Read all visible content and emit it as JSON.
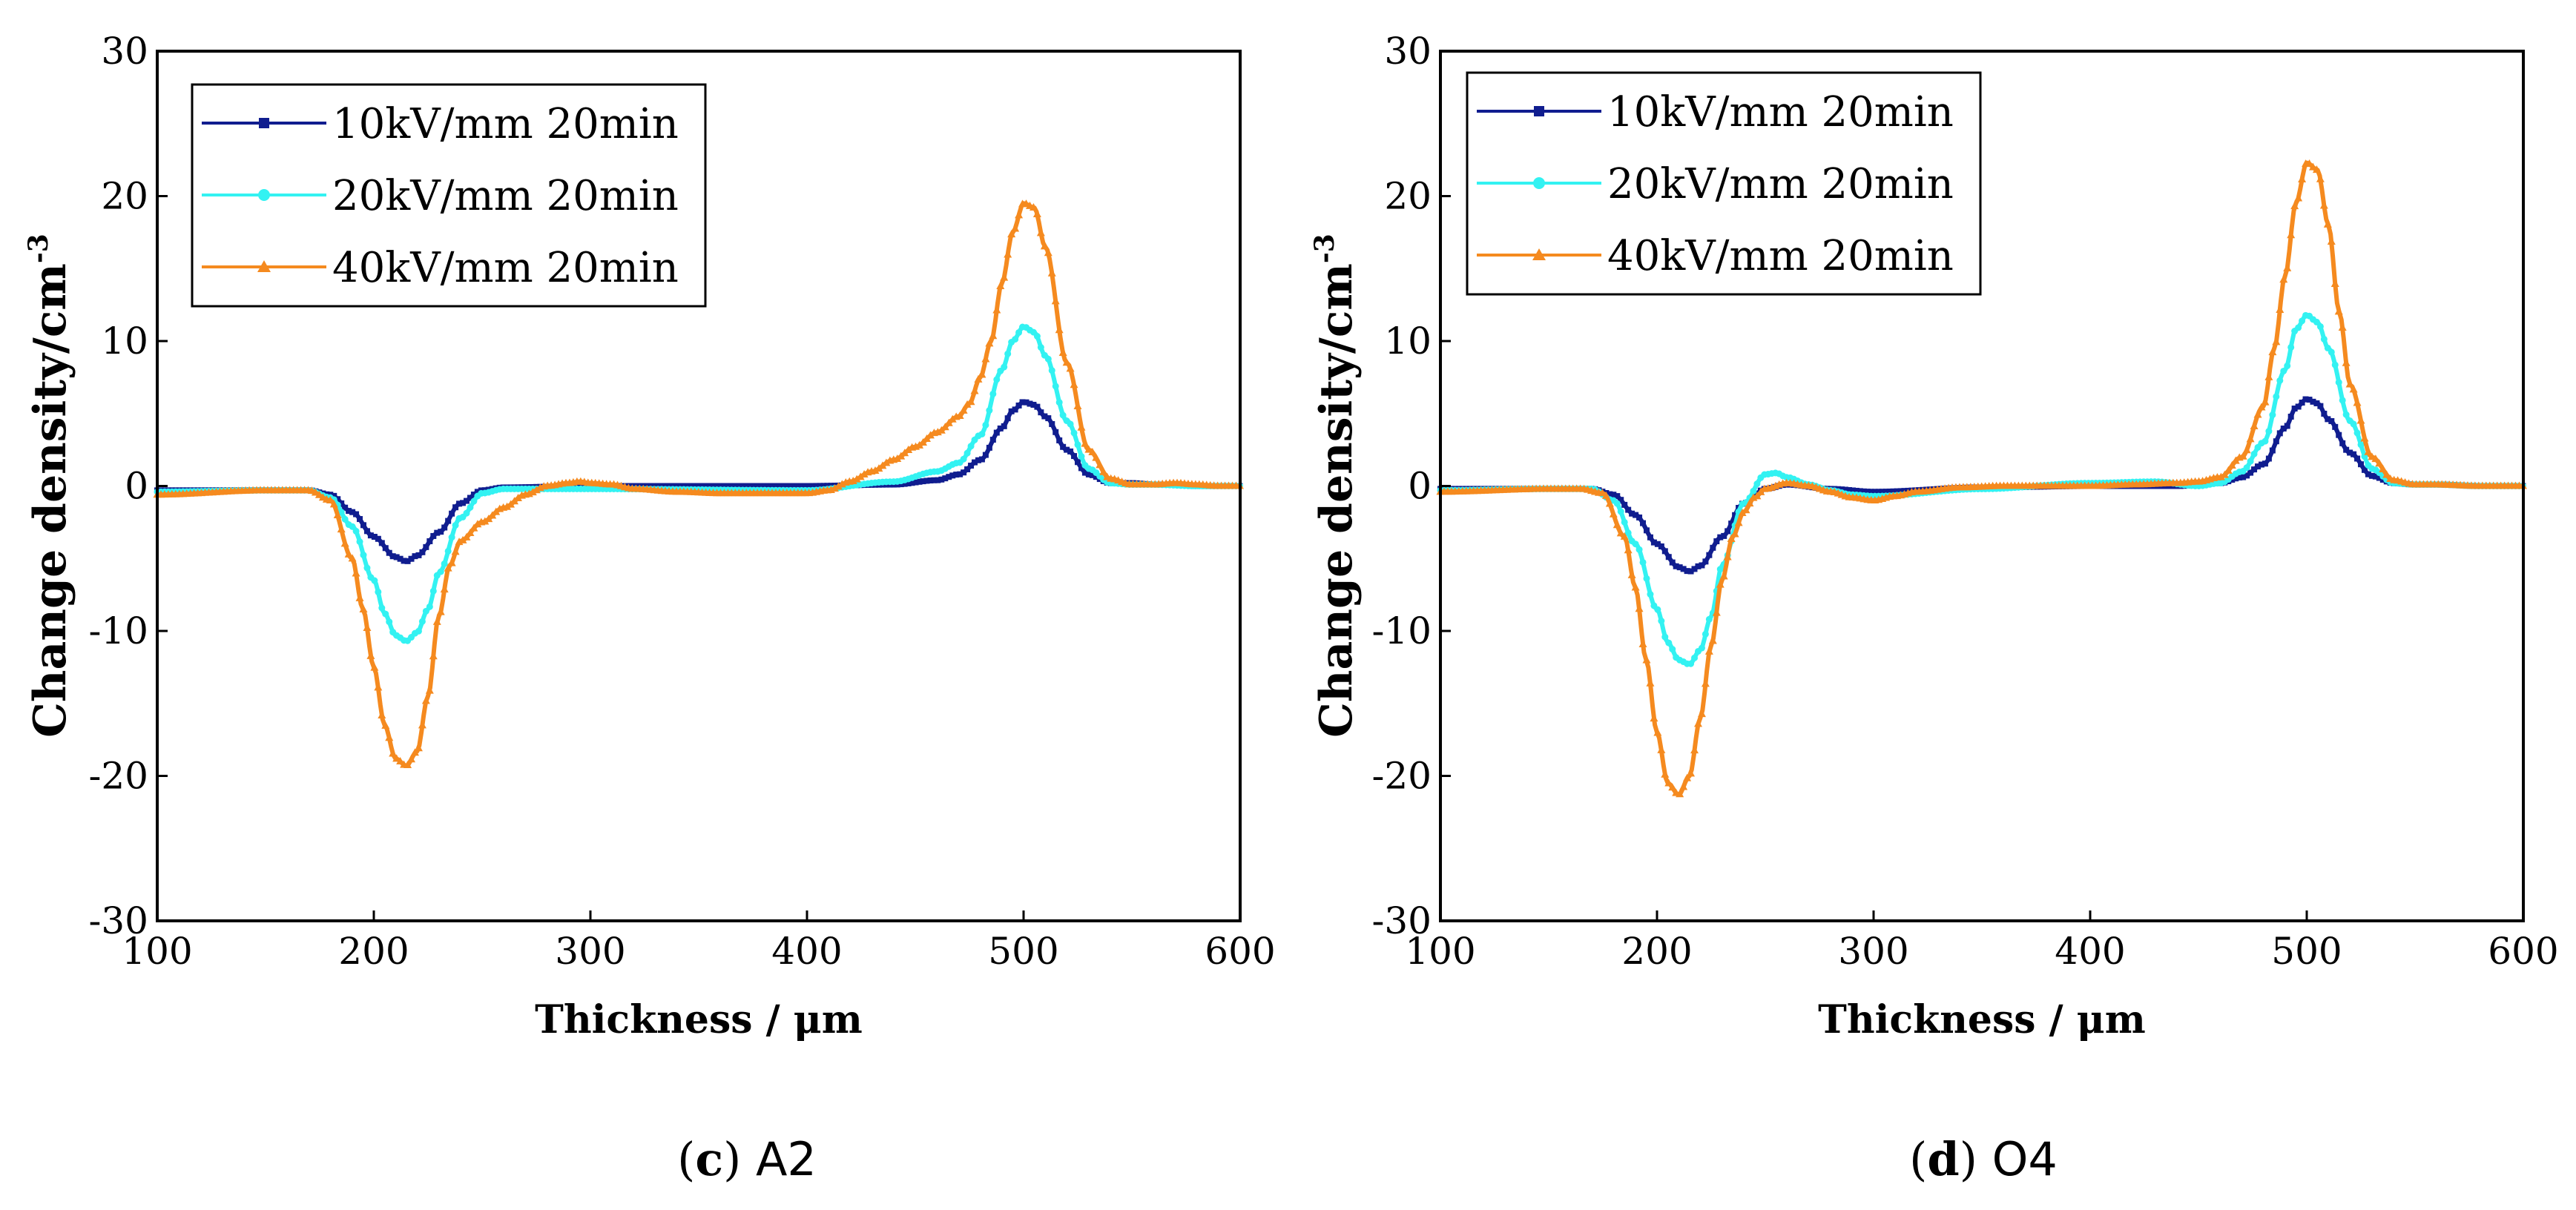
{
  "chart_data": [
    {
      "type": "line",
      "panel_label": "c",
      "panel_name": "A2",
      "title": "",
      "xlabel": "Thickness / μm",
      "ylabel": "Change density/cm",
      "ylabel_superscript": "-3",
      "xlim": [
        100,
        600
      ],
      "ylim": [
        -30,
        30
      ],
      "xticks": [
        100,
        200,
        300,
        400,
        500,
        600
      ],
      "yticks": [
        -30,
        -20,
        -10,
        0,
        10,
        20,
        30
      ],
      "grid": false,
      "legend_position": "top-left",
      "series": [
        {
          "name": "10kV/mm 20min",
          "color": "#101d8f",
          "marker": "square",
          "x": [
            100,
            150,
            170,
            180,
            190,
            200,
            210,
            215,
            220,
            230,
            240,
            250,
            260,
            300,
            400,
            440,
            460,
            470,
            480,
            490,
            495,
            500,
            505,
            510,
            520,
            530,
            540,
            550,
            560,
            570,
            580,
            600
          ],
          "values": [
            -0.3,
            -0.3,
            -0.3,
            -0.6,
            -1.8,
            -3.5,
            -4.9,
            -5.2,
            -4.8,
            -3.2,
            -1.2,
            -0.3,
            -0.1,
            0,
            0,
            0.1,
            0.4,
            0.8,
            1.8,
            4.0,
            5.2,
            5.8,
            5.6,
            4.8,
            2.5,
            0.8,
            0.2,
            0.2,
            0.1,
            0.1,
            0,
            0
          ]
        },
        {
          "name": "20kV/mm 20min",
          "color": "#33f2f2",
          "marker": "circle",
          "x": [
            100,
            150,
            170,
            180,
            190,
            200,
            205,
            210,
            215,
            220,
            225,
            230,
            240,
            250,
            260,
            300,
            400,
            440,
            460,
            470,
            480,
            490,
            495,
            500,
            505,
            510,
            520,
            530,
            540,
            550,
            560,
            580,
            600
          ],
          "values": [
            -0.4,
            -0.3,
            -0.3,
            -0.8,
            -2.8,
            -6.5,
            -8.8,
            -10.3,
            -10.7,
            -10.1,
            -8.5,
            -6.0,
            -2.2,
            -0.5,
            -0.2,
            -0.2,
            -0.3,
            0.3,
            1.0,
            1.6,
            3.5,
            8.0,
            10.0,
            11.0,
            10.6,
            9.0,
            4.5,
            1.2,
            0.2,
            0.1,
            0.1,
            0,
            0
          ]
        },
        {
          "name": "40kV/mm 20min",
          "color": "#f58a1f",
          "marker": "triangle",
          "x": [
            100,
            150,
            170,
            180,
            190,
            195,
            200,
            205,
            210,
            215,
            220,
            225,
            230,
            235,
            240,
            250,
            260,
            270,
            280,
            290,
            295,
            300,
            310,
            320,
            340,
            360,
            380,
            400,
            410,
            420,
            430,
            440,
            450,
            460,
            470,
            475,
            480,
            485,
            490,
            495,
            500,
            505,
            510,
            520,
            530,
            540,
            550,
            560,
            570,
            580,
            590,
            600
          ],
          "values": [
            -0.6,
            -0.3,
            -0.3,
            -1.0,
            -5.0,
            -8.5,
            -12.5,
            -16.5,
            -18.8,
            -19.3,
            -18.3,
            -14.5,
            -9.0,
            -5.5,
            -3.8,
            -2.5,
            -1.5,
            -0.6,
            0,
            0.2,
            0.3,
            0.2,
            0.1,
            -0.2,
            -0.4,
            -0.5,
            -0.5,
            -0.5,
            -0.3,
            0.3,
            1.0,
            1.8,
            2.7,
            3.7,
            4.8,
            5.7,
            7.5,
            10.0,
            14.0,
            17.5,
            19.5,
            19.2,
            16.5,
            8.5,
            2.5,
            0.5,
            0.1,
            0.1,
            0.2,
            0.1,
            0,
            0
          ]
        }
      ]
    },
    {
      "type": "line",
      "panel_label": "d",
      "panel_name": "O4",
      "title": "",
      "xlabel": "Thickness / μm",
      "ylabel": "Change density/cm",
      "ylabel_superscript": "-3",
      "xlim": [
        100,
        600
      ],
      "ylim": [
        -30,
        30
      ],
      "xticks": [
        100,
        200,
        300,
        400,
        500,
        600
      ],
      "yticks": [
        -30,
        -20,
        -10,
        0,
        10,
        20,
        30
      ],
      "grid": false,
      "legend_position": "top-left",
      "series": [
        {
          "name": "10kV/mm 20min",
          "color": "#101d8f",
          "marker": "square",
          "x": [
            100,
            150,
            170,
            180,
            190,
            200,
            210,
            215,
            220,
            230,
            240,
            250,
            260,
            280,
            300,
            350,
            400,
            440,
            460,
            470,
            480,
            490,
            495,
            500,
            505,
            510,
            520,
            530,
            540,
            550,
            560,
            580,
            600
          ],
          "values": [
            -0.2,
            -0.2,
            -0.2,
            -0.6,
            -2.0,
            -4.0,
            -5.6,
            -5.9,
            -5.5,
            -3.5,
            -1.2,
            -0.2,
            0.1,
            -0.2,
            -0.4,
            -0.1,
            0,
            0,
            0.2,
            0.6,
            1.5,
            4.0,
            5.4,
            6.0,
            5.7,
            4.6,
            2.3,
            0.7,
            0.2,
            0.1,
            0.1,
            0,
            0
          ]
        },
        {
          "name": "20kV/mm 20min",
          "color": "#33f2f2",
          "marker": "circle",
          "x": [
            100,
            150,
            170,
            180,
            190,
            200,
            205,
            210,
            215,
            220,
            225,
            230,
            240,
            250,
            255,
            260,
            270,
            280,
            290,
            300,
            350,
            400,
            430,
            450,
            460,
            470,
            480,
            490,
            495,
            500,
            505,
            510,
            520,
            530,
            540,
            550,
            560,
            580,
            600
          ],
          "values": [
            -0.3,
            -0.2,
            -0.2,
            -1.0,
            -4.0,
            -8.5,
            -10.8,
            -12.0,
            -12.3,
            -11.3,
            -9.0,
            -5.5,
            -1.2,
            0.8,
            0.9,
            0.6,
            0.1,
            -0.3,
            -0.6,
            -0.7,
            -0.2,
            0.2,
            0.3,
            0,
            0.2,
            1.0,
            3.0,
            8.0,
            10.8,
            11.8,
            11.3,
            9.5,
            4.5,
            1.2,
            0.2,
            0.1,
            0.1,
            0,
            0
          ]
        },
        {
          "name": "40kV/mm 20min",
          "color": "#f58a1f",
          "marker": "triangle",
          "x": [
            100,
            150,
            165,
            175,
            185,
            190,
            195,
            200,
            205,
            210,
            215,
            220,
            225,
            230,
            235,
            240,
            245,
            250,
            260,
            270,
            280,
            290,
            300,
            310,
            320,
            340,
            360,
            380,
            400,
            420,
            440,
            450,
            460,
            470,
            480,
            485,
            490,
            495,
            500,
            505,
            510,
            515,
            520,
            530,
            540,
            550,
            560,
            580,
            600
          ],
          "values": [
            -0.4,
            -0.2,
            -0.2,
            -0.5,
            -3.5,
            -7.0,
            -12.0,
            -17.0,
            -20.5,
            -21.3,
            -20.0,
            -16.0,
            -11.0,
            -6.5,
            -3.5,
            -1.8,
            -0.8,
            -0.2,
            0.2,
            0,
            -0.4,
            -0.8,
            -1.0,
            -0.7,
            -0.4,
            -0.1,
            0,
            0,
            0,
            0.1,
            0.2,
            0.3,
            0.6,
            2.0,
            5.5,
            9.5,
            14.5,
            19.5,
            22.3,
            21.8,
            18.0,
            12.0,
            7.0,
            2.0,
            0.4,
            0.1,
            0.1,
            0,
            0
          ]
        }
      ]
    }
  ]
}
